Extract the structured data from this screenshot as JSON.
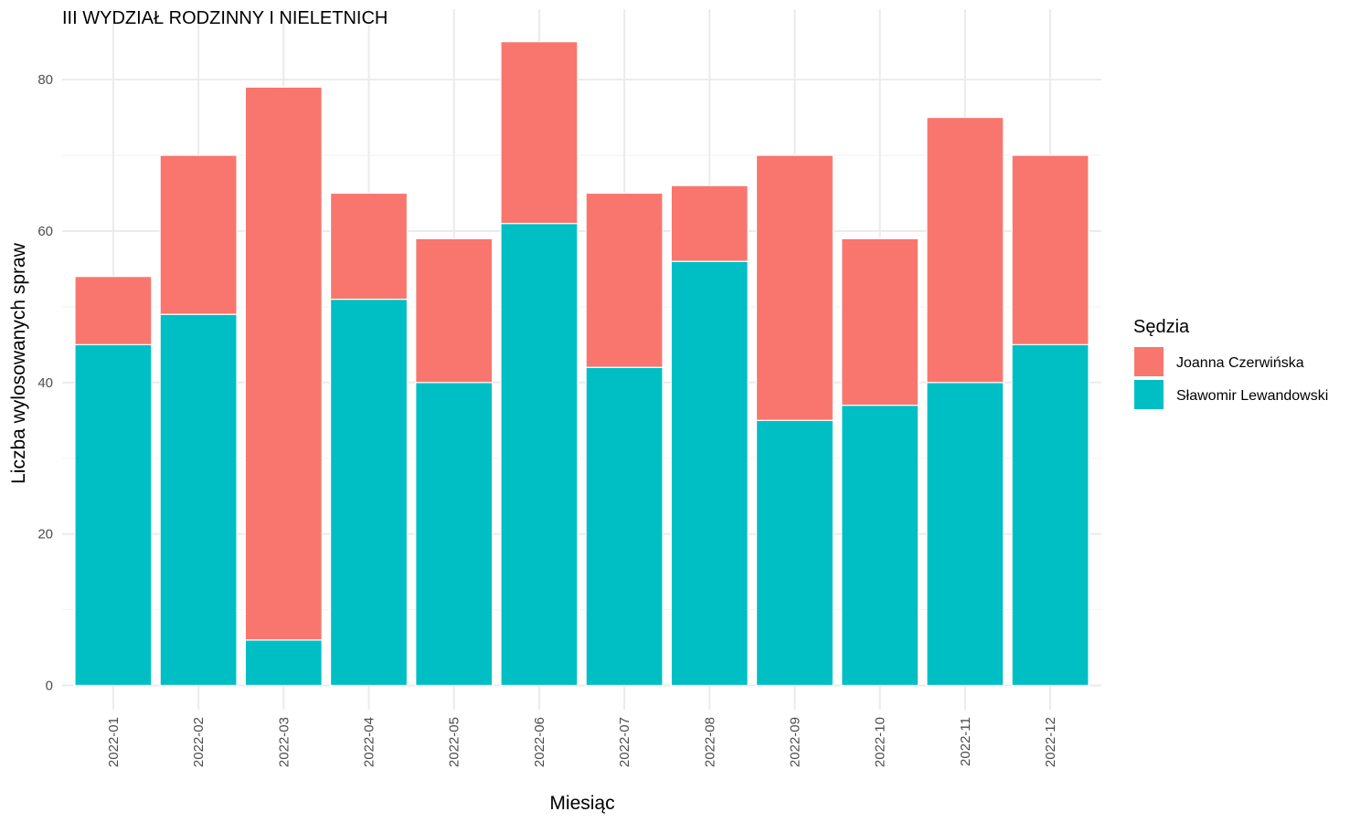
{
  "chart_data": {
    "type": "bar",
    "stacked": true,
    "title": "III WYDZIAŁ RODZINNY I NIELETNICH",
    "xlabel": "Miesiąc",
    "ylabel": "Liczba wylosowanych spraw",
    "categories": [
      "2022-01",
      "2022-02",
      "2022-03",
      "2022-04",
      "2022-05",
      "2022-06",
      "2022-07",
      "2022-08",
      "2022-09",
      "2022-10",
      "2022-11",
      "2022-12"
    ],
    "series": [
      {
        "name": "Sławomir Lewandowski",
        "color": "#00BFC4",
        "values": [
          45,
          49,
          6,
          51,
          40,
          61,
          42,
          56,
          35,
          37,
          40,
          45
        ]
      },
      {
        "name": "Joanna Czerwińska",
        "color": "#F8766D",
        "values": [
          9,
          21,
          73,
          14,
          19,
          24,
          23,
          10,
          35,
          22,
          35,
          25
        ]
      }
    ],
    "ylim": [
      -3.2,
      89.3
    ],
    "yticks": [
      0,
      20,
      40,
      60,
      80
    ],
    "grid": true,
    "legend": {
      "title": "Sędzia",
      "position": "right",
      "order": [
        "Joanna Czerwińska",
        "Sławomir Lewandowski"
      ]
    }
  }
}
